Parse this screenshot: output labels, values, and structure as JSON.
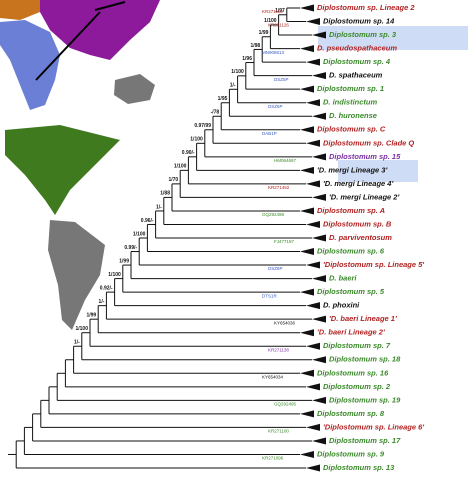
{
  "clades": [
    {
      "name": "Diplostomum sp. Lineage 2",
      "color": "#b22222"
    },
    {
      "name": "Diplostomum sp. 14",
      "color": "#111111"
    },
    {
      "name": "Diplostomum sp. 3",
      "color": "#3a8a2a"
    },
    {
      "name": "D. pseudospathaceum",
      "color": "#b22222"
    },
    {
      "name": "Diplostomum sp. 4",
      "color": "#3a8a2a"
    },
    {
      "name": "D. spathaceum",
      "color": "#111111"
    },
    {
      "name": "Diplostomum sp. 1",
      "color": "#3a8a2a"
    },
    {
      "name": "D. indistinctum",
      "color": "#3a8a2a"
    },
    {
      "name": "D. huronense",
      "color": "#3a8a2a"
    },
    {
      "name": "Diplostomum sp. C",
      "color": "#b22222"
    },
    {
      "name": "Diplostomum sp. Clade Q",
      "color": "#b22222"
    },
    {
      "name": "Diplostomum sp. 15",
      "color": "#7b2fa5"
    },
    {
      "name": "'D. mergi Lineage 3'",
      "color": "#111111"
    },
    {
      "name": "'D. mergi Lineage 4'",
      "color": "#111111"
    },
    {
      "name": "'D. mergi Lineage 2'",
      "color": "#111111"
    },
    {
      "name": "Diplostomum sp. A",
      "color": "#b22222"
    },
    {
      "name": "Diplostomum sp. B",
      "color": "#b22222"
    },
    {
      "name": "D. parviventosum",
      "color": "#b22222"
    },
    {
      "name": "Diplostomum sp. 6",
      "color": "#3a8a2a"
    },
    {
      "name": "'Diplostomum sp. Lineage 5'",
      "color": "#b22222"
    },
    {
      "name": "D. baeri",
      "color": "#3a8a2a"
    },
    {
      "name": "Diplostomum sp. 5",
      "color": "#3a8a2a"
    },
    {
      "name": "D. phoxini",
      "color": "#111111"
    },
    {
      "name": "'D. baeri Lineage 1'",
      "color": "#b22222"
    },
    {
      "name": "'D. baeri Lineage 2'",
      "color": "#b22222"
    },
    {
      "name": "Diplostomum sp. 7",
      "color": "#3a8a2a"
    },
    {
      "name": "Diplostomum sp. 18",
      "color": "#3a8a2a"
    },
    {
      "name": "Diplostomum sp. 16",
      "color": "#3a8a2a"
    },
    {
      "name": "Diplostomum sp. 2",
      "color": "#3a8a2a"
    },
    {
      "name": "Diplostomum sp. 19",
      "color": "#3a8a2a"
    },
    {
      "name": "Diplostomum sp. 8",
      "color": "#3a8a2a"
    },
    {
      "name": "'Diplostomum sp. Lineage 6'",
      "color": "#b22222"
    },
    {
      "name": "Diplostomum sp. 17",
      "color": "#3a8a2a"
    },
    {
      "name": "Diplostomum sp. 9",
      "color": "#3a8a2a"
    },
    {
      "name": "Diplostomum sp. 13",
      "color": "#3a8a2a"
    }
  ],
  "supports": [
    "1/97",
    "1/100",
    "1/99",
    "1/98",
    "1/96",
    "1/100",
    "1/-",
    "1/95",
    "-/78",
    "0.97/99",
    "1/100",
    "0.90/-",
    "1/100",
    "1/70",
    "1/88",
    "1/-",
    "0.96/-",
    "1/100",
    "0.99/-",
    "1/99",
    "1/100",
    "0.92/-",
    "1/-",
    "1/99",
    "1/100",
    "1/-"
  ],
  "accessions": [
    {
      "label": "KR271113",
      "color": "#b22222"
    },
    {
      "label": "KR271126",
      "color": "#b22222"
    },
    {
      "label": "MN908613",
      "color": "#3b5bbf"
    },
    {
      "label": "DSZ5P",
      "color": "#3b5bbf"
    },
    {
      "label": "DSZ6P",
      "color": "#3b5bbf"
    },
    {
      "label": "DAB1P",
      "color": "#3b5bbf"
    },
    {
      "label": "HM064697",
      "color": "#3a8a2a"
    },
    {
      "label": "KR271452",
      "color": "#b22222"
    },
    {
      "label": "GQ292498",
      "color": "#3a8a2a"
    },
    {
      "label": "FJ477197",
      "color": "#3a8a2a"
    },
    {
      "label": "DSZ8P",
      "color": "#3b5bbf"
    },
    {
      "label": "DTS1R",
      "color": "#3b5bbf"
    },
    {
      "label": "KY654036",
      "color": "#111111"
    },
    {
      "label": "KR271138",
      "color": "#7b2fa5"
    },
    {
      "label": "KY654034",
      "color": "#111111"
    },
    {
      "label": "GQ292495",
      "color": "#3a8a2a"
    },
    {
      "label": "KR271100",
      "color": "#3a8a2a"
    },
    {
      "label": "KR271096",
      "color": "#3a8a2a"
    }
  ]
}
